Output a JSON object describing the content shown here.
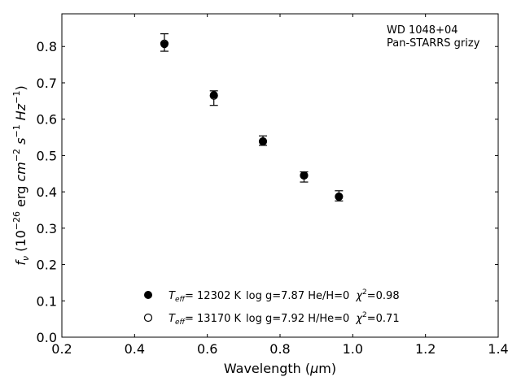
{
  "chart_data": {
    "type": "scatter",
    "annotation_lines": [
      "WD 1048+04",
      "Pan-STARRS grizy"
    ],
    "xlabel": "Wavelength (μm)",
    "ylabel": "f_ν (10^-26 erg cm^-2 s^-1 Hz^-1)",
    "xlim": [
      0.2,
      1.4
    ],
    "ylim": [
      0.0,
      0.89
    ],
    "xticks": [
      0.2,
      0.4,
      0.6,
      0.8,
      1.0,
      1.2,
      1.4
    ],
    "xtick_labels": [
      "0.2",
      "0.4",
      "0.6",
      "0.8",
      "1.0",
      "1.2",
      "1.4"
    ],
    "yticks": [
      0.0,
      0.1,
      0.2,
      0.3,
      0.4,
      0.5,
      0.6,
      0.7,
      0.8
    ],
    "ytick_labels": [
      "0.0",
      "0.1",
      "0.2",
      "0.3",
      "0.4",
      "0.5",
      "0.6",
      "0.7",
      "0.8"
    ],
    "grid": false,
    "observed": {
      "x": [
        0.482,
        0.618,
        0.753,
        0.866,
        0.962
      ],
      "y": [
        0.811,
        0.658,
        0.541,
        0.441,
        0.389
      ],
      "yerr": [
        0.024,
        0.02,
        0.013,
        0.014,
        0.014
      ]
    },
    "series": [
      {
        "marker": "filled",
        "color": "#000000",
        "x": [
          0.482,
          0.618,
          0.753,
          0.866,
          0.962
        ],
        "y": [
          0.806,
          0.667,
          0.538,
          0.446,
          0.386
        ],
        "legend": {
          "teff": "= 12302 K",
          "params": "log g=7.87  He/H=0",
          "chi": "=0.98"
        }
      },
      {
        "marker": "open",
        "color": "#000000",
        "x": [
          0.482,
          0.618,
          0.753,
          0.866,
          0.962
        ],
        "y": [
          0.808,
          0.665,
          0.539,
          0.445,
          0.387
        ],
        "legend": {
          "teff": "= 13170 K",
          "params": "log g=7.92  H/He=0",
          "chi": "=0.71"
        }
      }
    ]
  }
}
